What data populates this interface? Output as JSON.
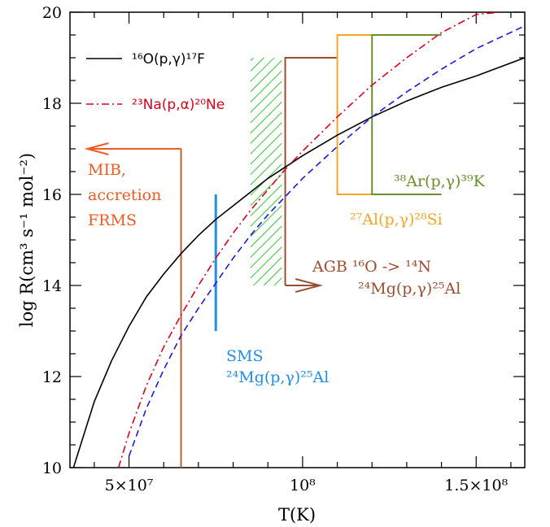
{
  "chart_data": {
    "type": "line",
    "xlabel": "T(K)",
    "ylabel": "log R(cm³ s⁻¹ mol⁻²)",
    "xlim": [
      33000000.0,
      164000000.0
    ],
    "ylim": [
      10,
      20
    ],
    "x_ticks": [
      {
        "value": 50000000.0,
        "label": "5×10⁷"
      },
      {
        "value": 100000000.0,
        "label": "10⁸"
      },
      {
        "value": 150000000.0,
        "label": "1.5×10⁸"
      }
    ],
    "y_ticks": [
      {
        "value": 10,
        "label": "10"
      },
      {
        "value": 12,
        "label": "12"
      },
      {
        "value": 14,
        "label": "14"
      },
      {
        "value": 16,
        "label": "16"
      },
      {
        "value": 18,
        "label": "18"
      },
      {
        "value": 20,
        "label": "20"
      }
    ],
    "grid": false,
    "legend_position": "top-left",
    "series": [
      {
        "name": "¹⁶O(p,γ)¹⁷F",
        "color": "#000000",
        "style": "solid",
        "x": [
          34000000.0,
          40000000.0,
          45000000.0,
          50000000.0,
          55000000.0,
          60000000.0,
          65000000.0,
          70000000.0,
          75000000.0,
          80000000.0,
          85000000.0,
          90000000.0,
          95000000.0,
          100000000.0,
          110000000.0,
          120000000.0,
          130000000.0,
          140000000.0,
          150000000.0,
          164000000.0
        ],
        "y": [
          10.0,
          11.45,
          12.35,
          13.1,
          13.75,
          14.25,
          14.7,
          15.1,
          15.45,
          15.75,
          16.05,
          16.35,
          16.6,
          16.85,
          17.3,
          17.7,
          18.05,
          18.35,
          18.6,
          19.0
        ]
      },
      {
        "name": "²³Na(p,α)²⁰Ne",
        "color": "#e0001b",
        "style": "dash-dot",
        "x": [
          47000000.0,
          50000000.0,
          55000000.0,
          60000000.0,
          65000000.0,
          70000000.0,
          75000000.0,
          80000000.0,
          85000000.0,
          90000000.0,
          95000000.0,
          100000000.0,
          110000000.0,
          120000000.0,
          130000000.0,
          140000000.0,
          150000000.0,
          157000000.0
        ],
        "y": [
          10.0,
          10.75,
          11.8,
          12.65,
          13.35,
          14.0,
          14.6,
          15.15,
          15.65,
          16.1,
          16.55,
          16.95,
          17.7,
          18.4,
          19.0,
          19.55,
          19.95,
          20.0
        ]
      },
      {
        "name": "",
        "color": "#1a1adf",
        "style": "dashed",
        "x": [
          50000000.0,
          55000000.0,
          60000000.0,
          65000000.0,
          70000000.0,
          75000000.0,
          80000000.0,
          85000000.0,
          90000000.0,
          95000000.0,
          100000000.0,
          110000000.0,
          120000000.0,
          130000000.0,
          140000000.0,
          150000000.0,
          164000000.0
        ],
        "y": [
          10.25,
          11.3,
          12.15,
          12.9,
          13.5,
          14.05,
          14.6,
          15.1,
          15.55,
          15.95,
          16.35,
          17.05,
          17.7,
          18.25,
          18.75,
          19.2,
          19.7
        ]
      }
    ],
    "annotations": {
      "mib": {
        "lines": [
          "MIB,",
          "accretion",
          "FRMS"
        ],
        "color": "#f15a22",
        "bar_color": "#b85c3a",
        "x": 65000000.0,
        "y_top": 17.0,
        "arrow_to_x": 38000000.0
      },
      "sms": {
        "lines": [
          "SMS",
          "²⁴Mg(p,γ)²⁵Al"
        ],
        "color": "#1e90e8",
        "x": 75000000.0,
        "y_range": [
          13.0,
          16.0
        ]
      },
      "hatch": {
        "color": "#33cc33",
        "x_range": [
          85000000.0,
          94000000.0
        ],
        "y_range": [
          14.0,
          19.0
        ]
      },
      "agb": {
        "line1": "AGB ¹⁶O -> ¹⁴N",
        "line2": "²⁴Mg(p,γ)²⁵Al",
        "color": "#9b4f32",
        "x": 95000000.0,
        "x_top_end": 110000000.0,
        "y_top": 19.0,
        "y_arrow": 14.0,
        "arrow_to_x": 105000000.0
      },
      "al27": {
        "label": "²⁷Al(p,γ)²⁸Si",
        "color": "#f5a623",
        "x": 110000000.0,
        "y_range": [
          16.0,
          19.5
        ],
        "x_end": 140000000.0
      },
      "ar38": {
        "label": "³⁸Ar(p,γ)³⁹K",
        "color": "#6a8f2b",
        "x": 120000000.0,
        "y_range": [
          16.0,
          19.5
        ],
        "x_end": 140000000.0
      }
    }
  }
}
